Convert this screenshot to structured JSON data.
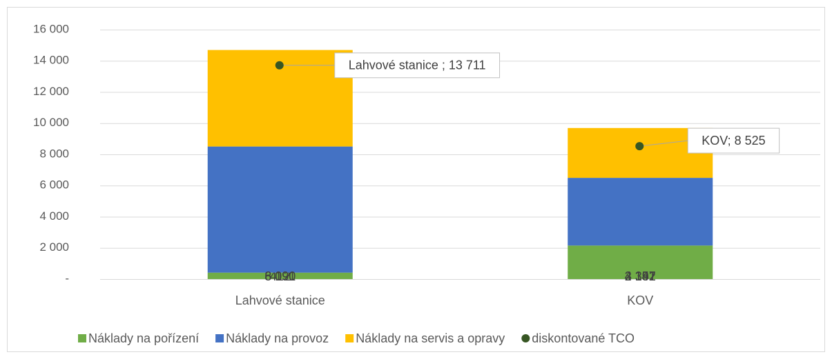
{
  "chart_data": {
    "type": "bar",
    "stacked": true,
    "categories": [
      "Lahvové stanice",
      "KOV"
    ],
    "series": [
      {
        "name": "Náklady na pořízení",
        "color": "#70ad47",
        "values": [
          412,
          2151
        ],
        "value_labels": [
          "412",
          "2 151"
        ]
      },
      {
        "name": "Náklady na provoz",
        "color": "#4472c4",
        "values": [
          8091,
          4342
        ],
        "value_labels": [
          "8 091",
          "4 342"
        ]
      },
      {
        "name": "Náklady na servis a opravy",
        "color": "#ffc000",
        "values": [
          6190,
          3197
        ],
        "value_labels": [
          "6 190",
          "3 197"
        ]
      },
      {
        "name": "diskontované TCO",
        "type": "scatter",
        "color": "#375623",
        "values": [
          13711,
          8525
        ],
        "value_labels": [
          "Lahvové stanice ; 13 711",
          "KOV; 8 525"
        ]
      }
    ],
    "ylim": [
      0,
      16000
    ],
    "yticks": [
      {
        "value": 0,
        "label": "-"
      },
      {
        "value": 2000,
        "label": "2 000"
      },
      {
        "value": 4000,
        "label": "4 000"
      },
      {
        "value": 6000,
        "label": "6 000"
      },
      {
        "value": 8000,
        "label": "8 000"
      },
      {
        "value": 10000,
        "label": "10 000"
      },
      {
        "value": 12000,
        "label": "12 000"
      },
      {
        "value": 14000,
        "label": "14 000"
      },
      {
        "value": 16000,
        "label": "16 000"
      }
    ],
    "grid": true,
    "legend": "bottom"
  }
}
